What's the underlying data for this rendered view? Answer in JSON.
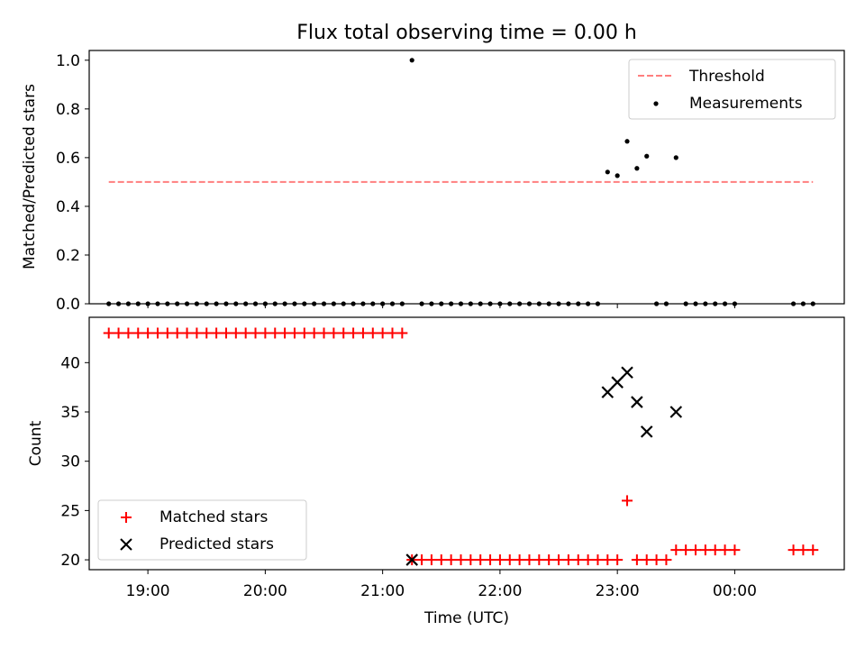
{
  "chart_data": [
    {
      "type": "scatter",
      "title": "Flux total observing time = 0.00 h",
      "xlabel": "",
      "ylabel": "Matched/Predicted stars",
      "ylim": [
        0,
        1.04
      ],
      "yticks": [
        0.0,
        0.2,
        0.4,
        0.6,
        0.8,
        1.0
      ],
      "ytick_labels": [
        "0.0",
        "0.2",
        "0.4",
        "0.6",
        "0.8",
        "1.0"
      ],
      "legend": {
        "placement": "top-right",
        "entries": [
          "Threshold",
          "Measurements"
        ]
      },
      "threshold": {
        "name": "Threshold",
        "value": 0.5,
        "x_start": "18:40",
        "x_end": "00:40",
        "color": "#ff7f7f"
      },
      "measurements": {
        "name": "Measurements",
        "color": "#000000",
        "zeros_x": [
          "18:40",
          "18:45",
          "18:50",
          "18:55",
          "19:00",
          "19:05",
          "19:10",
          "19:15",
          "19:20",
          "19:25",
          "19:30",
          "19:35",
          "19:40",
          "19:45",
          "19:50",
          "19:55",
          "20:00",
          "20:05",
          "20:10",
          "20:15",
          "20:20",
          "20:25",
          "20:30",
          "20:35",
          "20:40",
          "20:45",
          "20:50",
          "20:55",
          "21:00",
          "21:05",
          "21:10",
          "21:20",
          "21:25",
          "21:30",
          "21:35",
          "21:40",
          "21:45",
          "21:50",
          "21:55",
          "22:00",
          "22:05",
          "22:10",
          "22:15",
          "22:20",
          "22:25",
          "22:30",
          "22:35",
          "22:40",
          "22:45",
          "22:50",
          "23:20",
          "23:25",
          "23:35",
          "23:40",
          "23:45",
          "23:50",
          "23:55",
          "00:00",
          "00:30",
          "00:35",
          "00:40"
        ],
        "points": [
          {
            "x": "21:15",
            "y": 1.0
          },
          {
            "x": "22:55",
            "y": 0.541
          },
          {
            "x": "23:00",
            "y": 0.526
          },
          {
            "x": "23:05",
            "y": 0.667
          },
          {
            "x": "23:10",
            "y": 0.556
          },
          {
            "x": "23:15",
            "y": 0.606
          },
          {
            "x": "23:30",
            "y": 0.6
          }
        ]
      }
    },
    {
      "type": "scatter",
      "title": "",
      "xlabel": "Time (UTC)",
      "ylabel": "Count",
      "ylim": [
        19,
        44.6
      ],
      "yticks": [
        20,
        25,
        30,
        35,
        40
      ],
      "ytick_labels": [
        "20",
        "25",
        "30",
        "35",
        "40"
      ],
      "xlim": [
        "18:30",
        "00:56"
      ],
      "xticks": [
        "19:00",
        "20:00",
        "21:00",
        "22:00",
        "23:00",
        "00:00"
      ],
      "xtick_labels": [
        "19:00",
        "20:00",
        "21:00",
        "22:00",
        "23:00",
        "00:00"
      ],
      "legend": {
        "placement": "bottom-left",
        "entries": [
          "Matched stars",
          "Predicted stars"
        ]
      },
      "series": [
        {
          "name": "Matched stars",
          "marker": "+",
          "color": "#ff0000",
          "groups": [
            {
              "y": 43,
              "x": [
                "18:40",
                "18:45",
                "18:50",
                "18:55",
                "19:00",
                "19:05",
                "19:10",
                "19:15",
                "19:20",
                "19:25",
                "19:30",
                "19:35",
                "19:40",
                "19:45",
                "19:50",
                "19:55",
                "20:00",
                "20:05",
                "20:10",
                "20:15",
                "20:20",
                "20:25",
                "20:30",
                "20:35",
                "20:40",
                "20:45",
                "20:50",
                "20:55",
                "21:00",
                "21:05",
                "21:10"
              ]
            },
            {
              "y": 20,
              "x": [
                "21:15",
                "21:20",
                "21:25",
                "21:30",
                "21:35",
                "21:40",
                "21:45",
                "21:50",
                "21:55",
                "22:00",
                "22:05",
                "22:10",
                "22:15",
                "22:20",
                "22:25",
                "22:30",
                "22:35",
                "22:40",
                "22:45",
                "22:50",
                "22:55",
                "23:00",
                "23:10",
                "23:15",
                "23:20",
                "23:25"
              ]
            },
            {
              "y": 26,
              "x": [
                "23:05"
              ]
            },
            {
              "y": 21,
              "x": [
                "23:30",
                "23:35",
                "23:40",
                "23:45",
                "23:50",
                "23:55",
                "00:00",
                "00:30",
                "00:35",
                "00:40"
              ]
            }
          ]
        },
        {
          "name": "Predicted stars",
          "marker": "x",
          "color": "#000000",
          "points": [
            {
              "x": "21:15",
              "y": 20
            },
            {
              "x": "22:55",
              "y": 37
            },
            {
              "x": "23:00",
              "y": 38
            },
            {
              "x": "23:05",
              "y": 39
            },
            {
              "x": "23:10",
              "y": 36
            },
            {
              "x": "23:15",
              "y": 33
            },
            {
              "x": "23:30",
              "y": 35
            }
          ]
        }
      ]
    }
  ]
}
